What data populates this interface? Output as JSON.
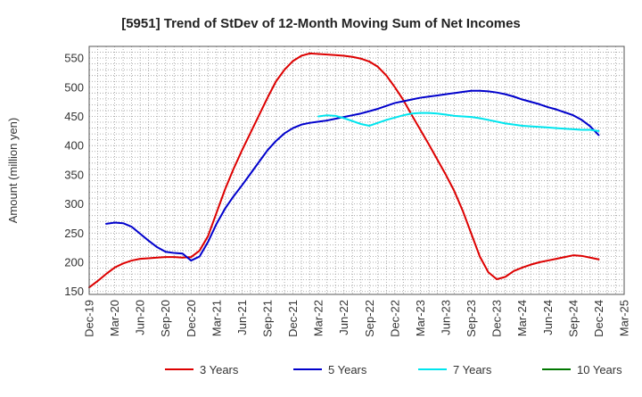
{
  "chart_data": {
    "type": "line",
    "title": "[5951]  Trend of StDev of 12-Month Moving Sum of Net Incomes",
    "ylabel": "Amount (million yen)",
    "xlabel": "",
    "x_ticks": [
      "Dec-19",
      "Mar-20",
      "Jun-20",
      "Sep-20",
      "Dec-20",
      "Mar-21",
      "Jun-21",
      "Sep-21",
      "Dec-21",
      "Mar-22",
      "Jun-22",
      "Sep-22",
      "Dec-22",
      "Mar-23",
      "Jun-23",
      "Sep-23",
      "Dec-23",
      "Mar-24",
      "Jun-24",
      "Sep-24",
      "Dec-24",
      "Mar-25"
    ],
    "y_ticks": [
      150,
      200,
      250,
      300,
      350,
      400,
      450,
      500,
      550
    ],
    "ylim": [
      145,
      570
    ],
    "grid": true,
    "legend_position": "bottom",
    "series": [
      {
        "name": "3 Years",
        "color": "#dd0000",
        "points": [
          [
            "Dec-19",
            157
          ],
          [
            "Jan-20",
            168
          ],
          [
            "Feb-20",
            180
          ],
          [
            "Mar-20",
            191
          ],
          [
            "Apr-20",
            198
          ],
          [
            "May-20",
            203
          ],
          [
            "Jun-20",
            206
          ],
          [
            "Jul-20",
            207
          ],
          [
            "Aug-20",
            208
          ],
          [
            "Sep-20",
            209
          ],
          [
            "Oct-20",
            209
          ],
          [
            "Nov-20",
            208
          ],
          [
            "Dec-20",
            209
          ],
          [
            "Jan-21",
            220
          ],
          [
            "Feb-21",
            245
          ],
          [
            "Mar-21",
            285
          ],
          [
            "Apr-21",
            325
          ],
          [
            "May-21",
            360
          ],
          [
            "Jun-21",
            392
          ],
          [
            "Jul-21",
            422
          ],
          [
            "Aug-21",
            452
          ],
          [
            "Sep-21",
            482
          ],
          [
            "Oct-21",
            510
          ],
          [
            "Nov-21",
            530
          ],
          [
            "Dec-21",
            545
          ],
          [
            "Jan-22",
            554
          ],
          [
            "Feb-22",
            558
          ],
          [
            "Mar-22",
            557
          ],
          [
            "Apr-22",
            556
          ],
          [
            "May-22",
            555
          ],
          [
            "Jun-22",
            554
          ],
          [
            "Jul-22",
            552
          ],
          [
            "Aug-22",
            549
          ],
          [
            "Sep-22",
            544
          ],
          [
            "Oct-22",
            535
          ],
          [
            "Nov-22",
            520
          ],
          [
            "Dec-22",
            500
          ],
          [
            "Jan-23",
            478
          ],
          [
            "Feb-23",
            452
          ],
          [
            "Mar-23",
            427
          ],
          [
            "Apr-23",
            402
          ],
          [
            "May-23",
            376
          ],
          [
            "Jun-23",
            350
          ],
          [
            "Jul-23",
            322
          ],
          [
            "Aug-23",
            288
          ],
          [
            "Sep-23",
            249
          ],
          [
            "Oct-23",
            210
          ],
          [
            "Nov-23",
            183
          ],
          [
            "Dec-23",
            171
          ],
          [
            "Jan-24",
            175
          ],
          [
            "Feb-24",
            185
          ],
          [
            "Mar-24",
            191
          ],
          [
            "Apr-24",
            196
          ],
          [
            "May-24",
            200
          ],
          [
            "Jun-24",
            203
          ],
          [
            "Jul-24",
            206
          ],
          [
            "Aug-24",
            209
          ],
          [
            "Sep-24",
            212
          ],
          [
            "Oct-24",
            211
          ],
          [
            "Nov-24",
            208
          ],
          [
            "Dec-24",
            205
          ]
        ]
      },
      {
        "name": "5 Years",
        "color": "#0000cc",
        "points": [
          [
            "Feb-20",
            266
          ],
          [
            "Mar-20",
            268
          ],
          [
            "Apr-20",
            267
          ],
          [
            "May-20",
            261
          ],
          [
            "Jun-20",
            249
          ],
          [
            "Jul-20",
            237
          ],
          [
            "Aug-20",
            226
          ],
          [
            "Sep-20",
            218
          ],
          [
            "Oct-20",
            216
          ],
          [
            "Nov-20",
            215
          ],
          [
            "Dec-20",
            203
          ],
          [
            "Jan-21",
            210
          ],
          [
            "Feb-21",
            235
          ],
          [
            "Mar-21",
            266
          ],
          [
            "Apr-21",
            292
          ],
          [
            "May-21",
            313
          ],
          [
            "Jun-21",
            332
          ],
          [
            "Jul-21",
            352
          ],
          [
            "Aug-21",
            372
          ],
          [
            "Sep-21",
            392
          ],
          [
            "Oct-21",
            408
          ],
          [
            "Nov-21",
            421
          ],
          [
            "Dec-21",
            430
          ],
          [
            "Jan-22",
            436
          ],
          [
            "Feb-22",
            439
          ],
          [
            "Mar-22",
            441
          ],
          [
            "Apr-22",
            443
          ],
          [
            "May-22",
            446
          ],
          [
            "Jun-22",
            449
          ],
          [
            "Jul-22",
            452
          ],
          [
            "Aug-22",
            455
          ],
          [
            "Sep-22",
            459
          ],
          [
            "Oct-22",
            463
          ],
          [
            "Nov-22",
            468
          ],
          [
            "Dec-22",
            473
          ],
          [
            "Jan-23",
            476
          ],
          [
            "Feb-23",
            479
          ],
          [
            "Mar-23",
            482
          ],
          [
            "Apr-23",
            484
          ],
          [
            "May-23",
            486
          ],
          [
            "Jun-23",
            488
          ],
          [
            "Jul-23",
            490
          ],
          [
            "Aug-23",
            492
          ],
          [
            "Sep-23",
            494
          ],
          [
            "Oct-23",
            494
          ],
          [
            "Nov-23",
            493
          ],
          [
            "Dec-23",
            491
          ],
          [
            "Jan-24",
            488
          ],
          [
            "Feb-24",
            484
          ],
          [
            "Mar-24",
            479
          ],
          [
            "Apr-24",
            475
          ],
          [
            "May-24",
            471
          ],
          [
            "Jun-24",
            466
          ],
          [
            "Jul-24",
            462
          ],
          [
            "Aug-24",
            457
          ],
          [
            "Sep-24",
            452
          ],
          [
            "Oct-24",
            444
          ],
          [
            "Nov-24",
            433
          ],
          [
            "Dec-24",
            418
          ]
        ]
      },
      {
        "name": "7 Years",
        "color": "#00e5ee",
        "points": [
          [
            "Mar-22",
            450
          ],
          [
            "Apr-22",
            452
          ],
          [
            "May-22",
            451
          ],
          [
            "Jun-22",
            447
          ],
          [
            "Jul-22",
            442
          ],
          [
            "Aug-22",
            437
          ],
          [
            "Sep-22",
            434
          ],
          [
            "Oct-22",
            439
          ],
          [
            "Nov-22",
            444
          ],
          [
            "Dec-22",
            448
          ],
          [
            "Jan-23",
            452
          ],
          [
            "Feb-23",
            455
          ],
          [
            "Mar-23",
            456
          ],
          [
            "Apr-23",
            456
          ],
          [
            "May-23",
            455
          ],
          [
            "Jun-23",
            453
          ],
          [
            "Jul-23",
            451
          ],
          [
            "Aug-23",
            450
          ],
          [
            "Sep-23",
            449
          ],
          [
            "Oct-23",
            447
          ],
          [
            "Nov-23",
            444
          ],
          [
            "Dec-23",
            441
          ],
          [
            "Jan-24",
            438
          ],
          [
            "Feb-24",
            436
          ],
          [
            "Mar-24",
            434
          ],
          [
            "Apr-24",
            433
          ],
          [
            "May-24",
            432
          ],
          [
            "Jun-24",
            431
          ],
          [
            "Jul-24",
            430
          ],
          [
            "Aug-24",
            429
          ],
          [
            "Sep-24",
            428
          ],
          [
            "Oct-24",
            427
          ],
          [
            "Nov-24",
            427
          ],
          [
            "Dec-24",
            425
          ]
        ]
      },
      {
        "name": "10 Years",
        "color": "#007700",
        "points": []
      }
    ]
  }
}
